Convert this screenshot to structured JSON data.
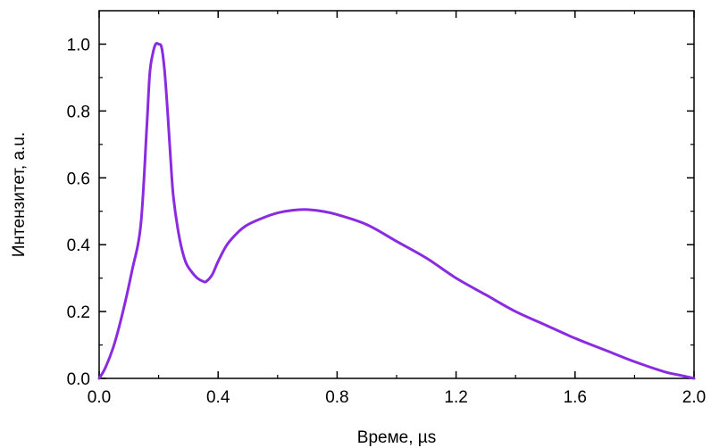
{
  "chart_data": {
    "type": "line",
    "title": "",
    "xlabel": "Време, µs",
    "ylabel": "Интензитет, a.u.",
    "xlim": [
      0.0,
      2.0
    ],
    "ylim": [
      0.0,
      1.1
    ],
    "x_ticks": [
      "0.0",
      "0.4",
      "0.8",
      "1.2",
      "1.6",
      "2.0"
    ],
    "y_ticks": [
      "0.0",
      "0.2",
      "0.4",
      "0.6",
      "0.8",
      "1.0"
    ],
    "grid": false,
    "colors": {
      "line": "#8A2BE2",
      "axis": "#000000"
    },
    "series": [
      {
        "x": [
          0.0,
          0.02,
          0.05,
          0.08,
          0.11,
          0.14,
          0.16,
          0.17,
          0.18,
          0.19,
          0.2,
          0.21,
          0.22,
          0.23,
          0.24,
          0.25,
          0.27,
          0.29,
          0.31,
          0.33,
          0.35,
          0.36,
          0.38,
          0.4,
          0.43,
          0.47,
          0.5,
          0.55,
          0.6,
          0.65,
          0.7,
          0.75,
          0.8,
          0.9,
          1.0,
          1.1,
          1.2,
          1.3,
          1.4,
          1.5,
          1.6,
          1.7,
          1.8,
          1.9,
          1.95,
          2.0
        ],
        "values": [
          0.0,
          0.03,
          0.1,
          0.2,
          0.32,
          0.46,
          0.75,
          0.91,
          0.97,
          1.0,
          1.0,
          0.99,
          0.92,
          0.8,
          0.66,
          0.54,
          0.42,
          0.35,
          0.32,
          0.3,
          0.29,
          0.29,
          0.31,
          0.35,
          0.4,
          0.44,
          0.46,
          0.48,
          0.495,
          0.503,
          0.505,
          0.5,
          0.49,
          0.46,
          0.41,
          0.36,
          0.3,
          0.25,
          0.2,
          0.16,
          0.12,
          0.085,
          0.05,
          0.02,
          0.01,
          0.0
        ]
      }
    ]
  }
}
